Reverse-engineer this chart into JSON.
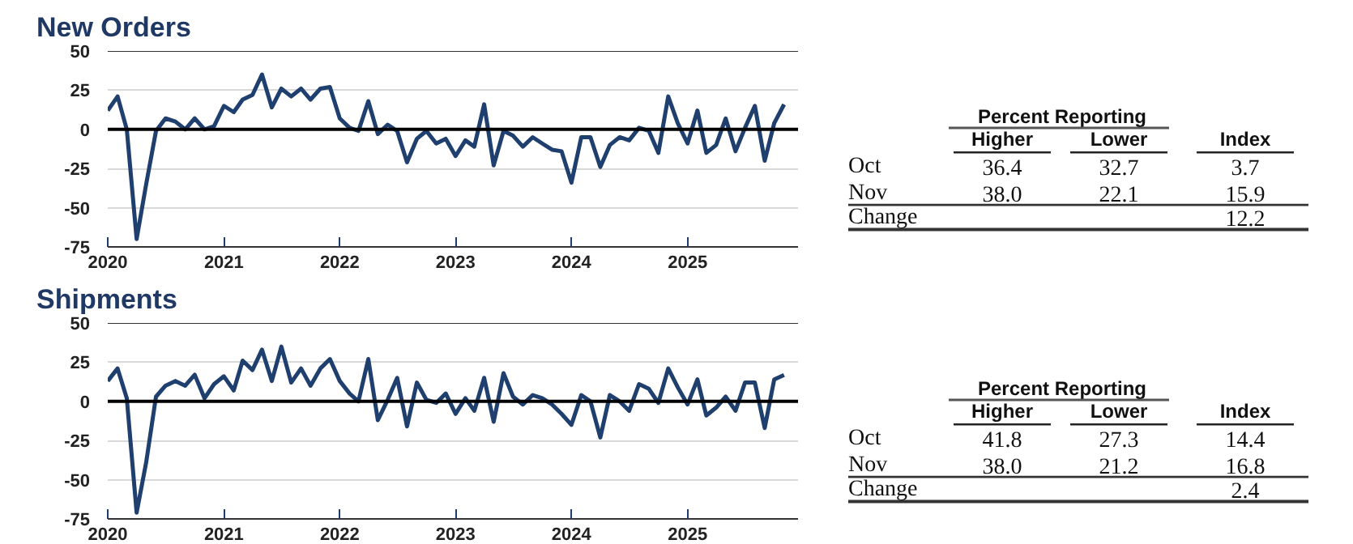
{
  "chart_data": [
    {
      "type": "line",
      "title": "New Orders",
      "x": [
        "2020-01",
        "2020-02",
        "2020-03",
        "2020-04",
        "2020-05",
        "2020-06",
        "2020-07",
        "2020-08",
        "2020-09",
        "2020-10",
        "2020-11",
        "2020-12",
        "2021-01",
        "2021-02",
        "2021-03",
        "2021-04",
        "2021-05",
        "2021-06",
        "2021-07",
        "2021-08",
        "2021-09",
        "2021-10",
        "2021-11",
        "2021-12",
        "2022-01",
        "2022-02",
        "2022-03",
        "2022-04",
        "2022-05",
        "2022-06",
        "2022-07",
        "2022-08",
        "2022-09",
        "2022-10",
        "2022-11",
        "2022-12",
        "2023-01",
        "2023-02",
        "2023-03",
        "2023-04",
        "2023-05",
        "2023-06",
        "2023-07",
        "2023-08",
        "2023-09",
        "2023-10",
        "2023-11",
        "2023-12",
        "2024-01",
        "2024-02",
        "2024-03",
        "2024-04",
        "2024-05",
        "2024-06",
        "2024-07",
        "2024-08",
        "2024-09",
        "2024-10",
        "2024-11",
        "2024-12",
        "2025-01",
        "2025-02",
        "2025-03",
        "2025-04",
        "2025-05",
        "2025-06",
        "2025-07",
        "2025-08",
        "2025-09",
        "2025-10",
        "2025-11"
      ],
      "series": [
        {
          "color": "#1f3f6e",
          "values": [
            12,
            21,
            0,
            -70,
            -35,
            -1,
            7,
            5,
            0,
            7,
            0,
            2,
            15,
            11,
            19,
            22,
            35,
            14,
            26,
            21,
            26,
            19,
            26,
            27,
            7,
            1,
            -1,
            18,
            -3,
            3,
            -1,
            -21,
            -6,
            -1,
            -9,
            -6,
            -17,
            -7,
            -11,
            16,
            -23,
            -1,
            -4,
            -11,
            -5,
            -9,
            -13,
            -14,
            -34,
            -5,
            -5,
            -24,
            -10,
            -5,
            -7,
            1,
            -1,
            -15,
            21,
            4,
            -9,
            12,
            -15,
            -10,
            7,
            -14,
            1,
            15,
            -20,
            4,
            15.9
          ]
        }
      ],
      "xlim": [
        "2020-01-01",
        "2025-12-15"
      ],
      "xticks": [
        {
          "value": "2020-01",
          "label": "2020"
        },
        {
          "value": "2021-01",
          "label": "2021"
        },
        {
          "value": "2022-01",
          "label": "2022"
        },
        {
          "value": "2023-01",
          "label": "2023"
        },
        {
          "value": "2024-01",
          "label": "2024"
        },
        {
          "value": "2025-01",
          "label": "2025"
        }
      ],
      "ylim": [
        -75,
        50
      ],
      "yticks": [
        -75,
        -50,
        -25,
        0,
        25,
        50
      ],
      "grid": "y",
      "ref_lines": [
        {
          "axis": "y",
          "value": 0,
          "color": "#000000"
        }
      ]
    },
    {
      "type": "other",
      "title": "Percent Reporting",
      "categories": [
        "Higher",
        "Lower",
        "Index"
      ],
      "y_categories": [
        "Oct",
        "Nov",
        "Change"
      ],
      "cell_labels": [
        [
          "36.4",
          "32.7",
          "3.7"
        ],
        [
          "38.0",
          "22.1",
          "15.9"
        ],
        [
          null,
          null,
          "12.2"
        ]
      ]
    },
    {
      "type": "line",
      "title": "Shipments",
      "x": [
        "2020-01",
        "2020-02",
        "2020-03",
        "2020-04",
        "2020-05",
        "2020-06",
        "2020-07",
        "2020-08",
        "2020-09",
        "2020-10",
        "2020-11",
        "2020-12",
        "2021-01",
        "2021-02",
        "2021-03",
        "2021-04",
        "2021-05",
        "2021-06",
        "2021-07",
        "2021-08",
        "2021-09",
        "2021-10",
        "2021-11",
        "2021-12",
        "2022-01",
        "2022-02",
        "2022-03",
        "2022-04",
        "2022-05",
        "2022-06",
        "2022-07",
        "2022-08",
        "2022-09",
        "2022-10",
        "2022-11",
        "2022-12",
        "2023-01",
        "2023-02",
        "2023-03",
        "2023-04",
        "2023-05",
        "2023-06",
        "2023-07",
        "2023-08",
        "2023-09",
        "2023-10",
        "2023-11",
        "2023-12",
        "2024-01",
        "2024-02",
        "2024-03",
        "2024-04",
        "2024-05",
        "2024-06",
        "2024-07",
        "2024-08",
        "2024-09",
        "2024-10",
        "2024-11",
        "2024-12",
        "2025-01",
        "2025-02",
        "2025-03",
        "2025-04",
        "2025-05",
        "2025-06",
        "2025-07",
        "2025-08",
        "2025-09",
        "2025-10",
        "2025-11"
      ],
      "series": [
        {
          "color": "#1f3f6e",
          "values": [
            13,
            21,
            2,
            -71,
            -39,
            3,
            10,
            13,
            10,
            17,
            2,
            11,
            16,
            7,
            26,
            20,
            33,
            13,
            35,
            12,
            21,
            10,
            21,
            27,
            13,
            5,
            0,
            27,
            -12,
            1,
            15,
            -16,
            12,
            1,
            -1,
            5,
            -8,
            2,
            -6,
            15,
            -13,
            18,
            3,
            -2,
            4,
            2,
            -2,
            -8,
            -15,
            4,
            0,
            -23,
            4,
            0,
            -6,
            11,
            8,
            -1,
            21,
            9,
            -2,
            14,
            -9,
            -4,
            3,
            -6,
            12,
            12,
            -17,
            14,
            16.8
          ]
        }
      ],
      "xlim": [
        "2020-01-01",
        "2025-12-15"
      ],
      "xticks": [
        {
          "value": "2020-01",
          "label": "2020"
        },
        {
          "value": "2021-01",
          "label": "2021"
        },
        {
          "value": "2022-01",
          "label": "2022"
        },
        {
          "value": "2023-01",
          "label": "2023"
        },
        {
          "value": "2024-01",
          "label": "2024"
        },
        {
          "value": "2025-01",
          "label": "2025"
        }
      ],
      "ylim": [
        -75,
        50
      ],
      "yticks": [
        -75,
        -50,
        -25,
        0,
        25,
        50
      ],
      "grid": "y",
      "ref_lines": [
        {
          "axis": "y",
          "value": 0,
          "color": "#000000"
        }
      ]
    },
    {
      "type": "other",
      "title": "Percent Reporting",
      "categories": [
        "Higher",
        "Lower",
        "Index"
      ],
      "y_categories": [
        "Oct",
        "Nov",
        "Change"
      ],
      "cell_labels": [
        [
          "41.8",
          "27.3",
          "14.4"
        ],
        [
          "38.0",
          "21.2",
          "16.8"
        ],
        [
          null,
          null,
          "2.4"
        ]
      ]
    }
  ]
}
